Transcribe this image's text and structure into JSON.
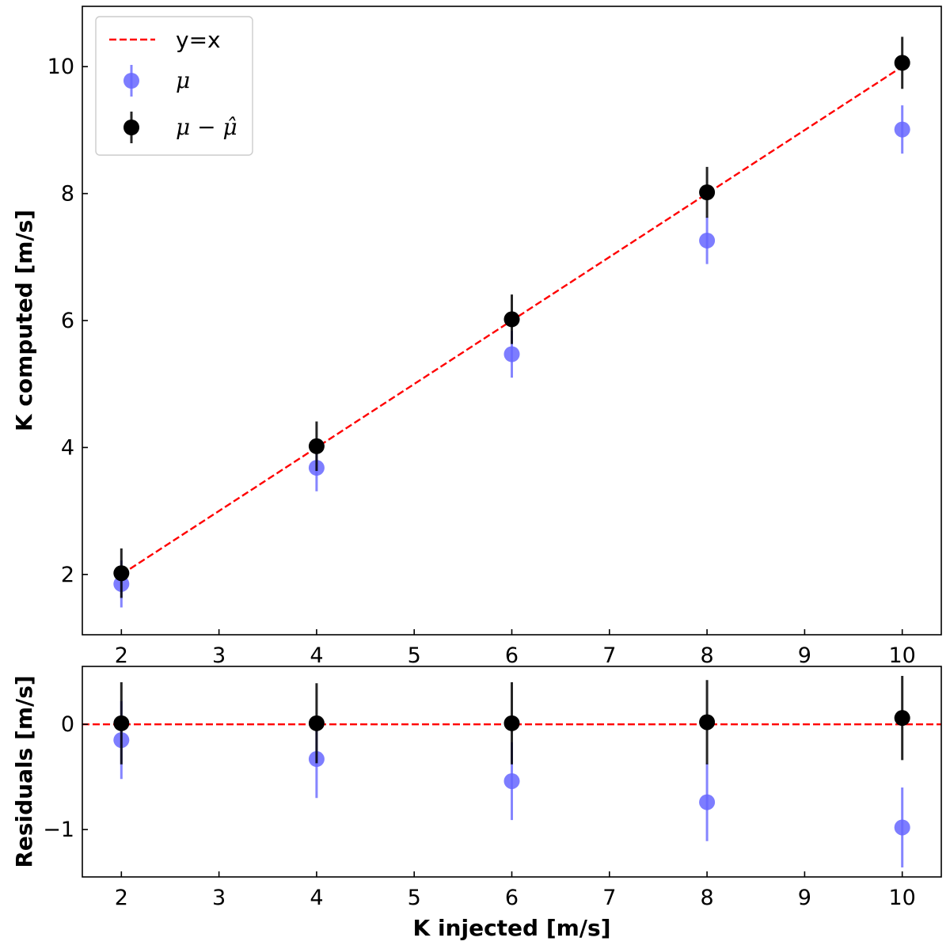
{
  "chart_data": [
    {
      "type": "scatter",
      "xlabel": "",
      "ylabel": "K computed [m/s]",
      "xlim": [
        1.6,
        10.4
      ],
      "ylim": [
        1.05,
        10.95
      ],
      "xticks": [
        "2",
        "3",
        "4",
        "5",
        "6",
        "7",
        "8",
        "9",
        "10"
      ],
      "yticks": [
        "2",
        "4",
        "6",
        "8",
        "10"
      ],
      "grid": false,
      "legend": {
        "position": "top-left",
        "entries": [
          {
            "label": "y=x",
            "style": "dashed-line",
            "color": "#ff0000"
          },
          {
            "label": "μ",
            "style": "marker-errorbar",
            "color": "#6666ff"
          },
          {
            "label": "μ − μ̂",
            "style": "marker-errorbar",
            "color": "#000000"
          }
        ]
      },
      "reference_line": {
        "name": "y=x",
        "x": [
          2,
          10
        ],
        "y": [
          2,
          10
        ],
        "color": "#ff0000",
        "style": "dashed"
      },
      "series": [
        {
          "name": "μ",
          "color": "#6666ff",
          "x": [
            2,
            4,
            6,
            8,
            10
          ],
          "y": [
            1.85,
            3.68,
            5.47,
            7.26,
            9.01
          ],
          "yerr": [
            0.37,
            0.37,
            0.37,
            0.37,
            0.38
          ]
        },
        {
          "name": "μ − μ̂",
          "color": "#000000",
          "x": [
            2,
            4,
            6,
            8,
            10
          ],
          "y": [
            2.02,
            4.02,
            6.02,
            8.02,
            10.06
          ],
          "yerr": [
            0.39,
            0.39,
            0.39,
            0.4,
            0.41
          ]
        }
      ]
    },
    {
      "type": "scatter",
      "xlabel": "K injected [m/s]",
      "ylabel": "Residuals [m/s]",
      "xlim": [
        1.6,
        10.4
      ],
      "ylim": [
        -1.45,
        0.55
      ],
      "xticks": [
        "2",
        "3",
        "4",
        "5",
        "6",
        "7",
        "8",
        "9",
        "10"
      ],
      "yticks": [
        "−1",
        "0"
      ],
      "grid": false,
      "reference_line": {
        "y": 0,
        "color": "#ff0000",
        "style": "dashed"
      },
      "series": [
        {
          "name": "μ",
          "color": "#6666ff",
          "x": [
            2,
            4,
            6,
            8,
            10
          ],
          "y": [
            -0.15,
            -0.33,
            -0.54,
            -0.74,
            -0.98
          ],
          "yerr": [
            0.37,
            0.37,
            0.37,
            0.37,
            0.38
          ]
        },
        {
          "name": "μ − μ̂",
          "color": "#000000",
          "x": [
            2,
            4,
            6,
            8,
            10
          ],
          "y": [
            0.01,
            0.01,
            0.01,
            0.02,
            0.06
          ],
          "yerr": [
            0.39,
            0.38,
            0.39,
            0.4,
            0.4
          ]
        }
      ]
    }
  ]
}
